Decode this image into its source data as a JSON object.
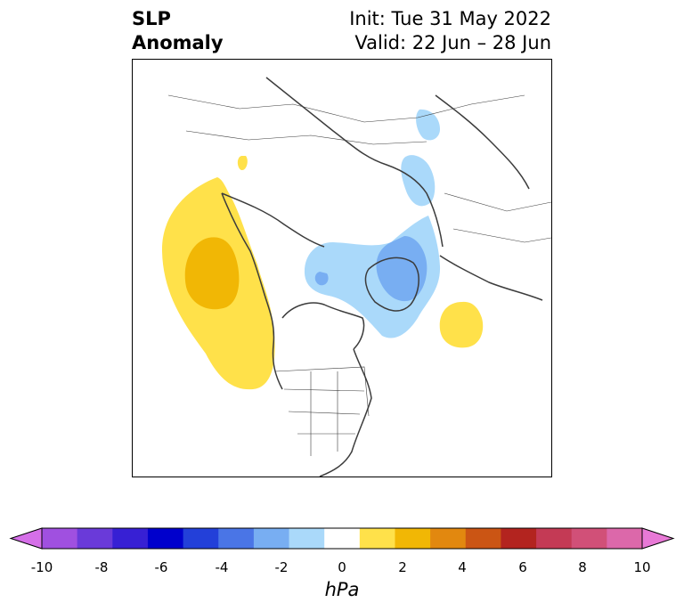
{
  "title": {
    "left_line1": "SLP",
    "left_line2": "Anomaly",
    "right_line1": "Init: Tue 31 May 2022",
    "right_line2": "Valid: 22 Jun – 28 Jun"
  },
  "map": {
    "projection": "polar stereographic (North America / Arctic)",
    "features": [
      "coastlines",
      "country borders",
      "US state borders",
      "Canadian province borders"
    ],
    "anomaly_regions": [
      {
        "name": "NE Pacific high",
        "sign": "positive",
        "peak": "2 to 3 hPa"
      },
      {
        "name": "Aleutian small high",
        "sign": "positive",
        "peak": "1 to 2 hPa"
      },
      {
        "name": "North Atlantic high",
        "sign": "positive",
        "peak": "1 to 2 hPa"
      },
      {
        "name": "Arctic / Greenland low",
        "sign": "negative",
        "peak": "-2 to -3 hPa"
      },
      {
        "name": "Siberia low",
        "sign": "negative",
        "peak": "-1 to -2 hPa"
      }
    ]
  },
  "colorbar": {
    "unit": "hPa",
    "ticks": [
      "-10",
      "-8",
      "-6",
      "-4",
      "-2",
      "0",
      "2",
      "4",
      "6",
      "8",
      "10"
    ],
    "colors": [
      "#d56fe8",
      "#a050e0",
      "#6a3ad9",
      "#3720d4",
      "#0000cc",
      "#2340d9",
      "#4a75e6",
      "#78aef2",
      "#aad9fa",
      "#ffffff",
      "#ffe14a",
      "#f1b705",
      "#e2880f",
      "#cb5514",
      "#b3241f",
      "#c43a55",
      "#d15078",
      "#dc68aa",
      "#e879d6"
    ]
  }
}
